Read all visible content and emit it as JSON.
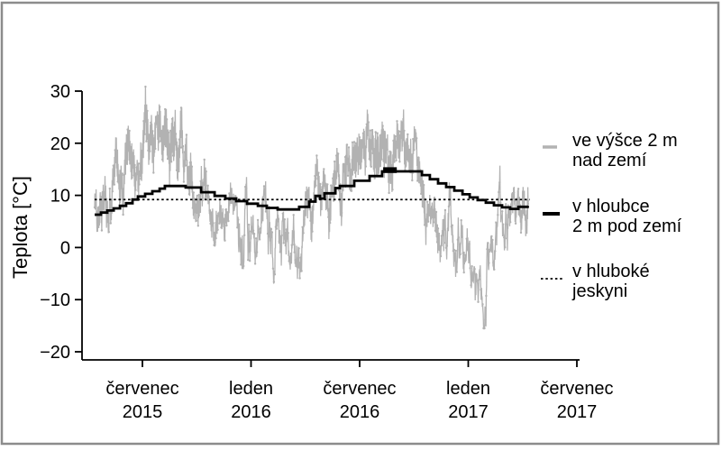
{
  "figure": {
    "background": "#ffffff",
    "border_color": "#8c8c8c"
  },
  "chart_data": {
    "type": "line",
    "title": "",
    "ylabel": "Teplota [°C]",
    "ylim": [
      -20,
      30
    ],
    "grid": false,
    "legend_position": "right",
    "y_ticks": [
      {
        "v": 30,
        "label": "30"
      },
      {
        "v": 20,
        "label": "20"
      },
      {
        "v": 10,
        "label": "10"
      },
      {
        "v": 0,
        "label": "0"
      },
      {
        "v": -10,
        "label": "−10"
      },
      {
        "v": -20,
        "label": "−20"
      }
    ],
    "x_ticks": [
      {
        "m": 6,
        "month": "červenec",
        "year": "2015"
      },
      {
        "m": 12,
        "month": "leden",
        "year": "2016"
      },
      {
        "m": 18,
        "month": "červenec",
        "year": "2016"
      },
      {
        "m": 24,
        "month": "leden",
        "year": "2017"
      },
      {
        "m": 30,
        "month": "červenec",
        "year": "2017"
      }
    ],
    "series": [
      {
        "name": "ve výšce 2 m nad zemí",
        "kind": "noisy-line",
        "color": "#b2b2b2",
        "m_start": 3.36,
        "m_end": 27.33,
        "points_per_day": 2,
        "monthly_mean": [
          [
            3.36,
            8
          ],
          [
            4.5,
            13.5
          ],
          [
            5.5,
            17
          ],
          [
            6.5,
            21
          ],
          [
            7.5,
            21.5
          ],
          [
            8.2,
            18
          ],
          [
            8.9,
            12.5
          ],
          [
            9.5,
            9
          ],
          [
            10.5,
            6
          ],
          [
            11.5,
            3
          ],
          [
            12.5,
            0
          ],
          [
            13.2,
            2.5
          ],
          [
            14.0,
            4.3
          ],
          [
            14.8,
            5.5
          ],
          [
            15.5,
            9
          ],
          [
            16.5,
            14
          ],
          [
            17.5,
            18
          ],
          [
            18.5,
            20.5
          ],
          [
            19.3,
            19
          ],
          [
            20.1,
            17
          ],
          [
            20.9,
            15
          ],
          [
            21.6,
            8.5
          ],
          [
            22.5,
            4.5
          ],
          [
            23.4,
            0.5
          ],
          [
            24.3,
            -3.5
          ],
          [
            25.1,
            -1
          ],
          [
            25.9,
            3
          ],
          [
            26.6,
            7
          ],
          [
            27.33,
            12.5
          ]
        ],
        "noise": {
          "seed": 42,
          "phi": 0.92,
          "innovation": 2.4,
          "winter_boost": 1.35,
          "diurnal_base": 0.8,
          "diurnal_per_degC": 0.08,
          "diurnal_max": 2.6,
          "jitter": 0.7
        }
      },
      {
        "name": "v hloubce 2 m pod zemí",
        "kind": "step-line",
        "color": "#000000",
        "line_width": 2.8,
        "steps": [
          [
            3.36,
            6.3
          ],
          [
            3.71,
            6.7
          ],
          [
            4.06,
            7.1
          ],
          [
            4.41,
            7.5
          ],
          [
            4.76,
            8.0
          ],
          [
            5.1,
            8.5
          ],
          [
            5.45,
            9.2
          ],
          [
            5.75,
            9.8
          ],
          [
            6.15,
            10.3
          ],
          [
            6.55,
            10.8
          ],
          [
            6.95,
            11.3
          ],
          [
            7.24,
            11.8
          ],
          [
            8.39,
            11.5
          ],
          [
            9.24,
            10.6
          ],
          [
            9.99,
            9.9
          ],
          [
            10.58,
            9.4
          ],
          [
            11.18,
            8.9
          ],
          [
            11.78,
            8.4
          ],
          [
            12.38,
            8.0
          ],
          [
            12.87,
            7.6
          ],
          [
            13.47,
            7.3
          ],
          [
            14.66,
            7.8
          ],
          [
            15.21,
            8.8
          ],
          [
            15.56,
            9.9
          ],
          [
            15.81,
            9.4
          ],
          [
            16.06,
            10.4
          ],
          [
            16.66,
            11.4
          ],
          [
            16.91,
            11.8
          ],
          [
            17.7,
            12.8
          ],
          [
            18.55,
            13.7
          ],
          [
            19.24,
            14.6
          ],
          [
            21.44,
            13.9
          ],
          [
            21.88,
            13.1
          ],
          [
            22.33,
            12.3
          ],
          [
            22.78,
            11.6
          ],
          [
            23.23,
            10.9
          ],
          [
            23.68,
            10.2
          ],
          [
            24.08,
            9.6
          ],
          [
            24.52,
            9.1
          ],
          [
            24.97,
            8.6
          ],
          [
            25.42,
            8.1
          ],
          [
            25.87,
            7.7
          ],
          [
            26.32,
            7.4
          ],
          [
            26.77,
            7.8
          ],
          [
            27.35,
            7.8
          ]
        ],
        "bold_segment": {
          "m0": 19.3,
          "m1": 20.05,
          "v_top": 15.4,
          "v_bottom": 14.3
        }
      },
      {
        "name": "v hluboké jeskyni",
        "kind": "dashed-constant",
        "color": "#000000",
        "value": 9.2,
        "m_start": 3.36,
        "m_end": 27.4,
        "dash": [
          2.5,
          2.8
        ]
      }
    ]
  },
  "legend": {
    "items": [
      {
        "id": "air",
        "line1": "ve výšce 2 m",
        "line2": "nad zemí",
        "color": "#b2b2b2",
        "sample": "solid-thick"
      },
      {
        "id": "soil",
        "line1": "v hloubce",
        "line2": "2 m pod zemí",
        "color": "#000000",
        "sample": "solid-thick"
      },
      {
        "id": "cave",
        "line1": "v hluboké",
        "line2": "jeskyni",
        "color": "#000000",
        "sample": "dotted"
      }
    ]
  }
}
